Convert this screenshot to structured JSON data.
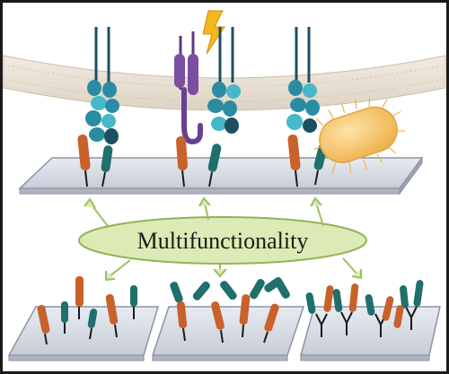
{
  "figure": {
    "center_label": "Multifunctionality",
    "colors": {
      "frame": "#1a1a1a",
      "membrane": "#e9e2d6",
      "membrane_edge": "#c9bfae",
      "receptor_dark": "#1d4f63",
      "receptor_mid": "#2a8ca3",
      "receptor_light": "#46b8c8",
      "ligand_orange": "#c8612a",
      "ligand_teal": "#1f6f6c",
      "purple": "#7a4fa0",
      "lightning": "#f2b81c",
      "bacterium": "#f7c46a",
      "plate": "#d9dde6",
      "plate_edge": "#8d93a3",
      "ellipse_fill": "#dcebb5",
      "ellipse_edge": "#93b25a",
      "arrow": "#9cc063"
    },
    "icons": {
      "stimulus": "lightning-bolt-icon",
      "pathogen": "bacterium-icon"
    }
  }
}
